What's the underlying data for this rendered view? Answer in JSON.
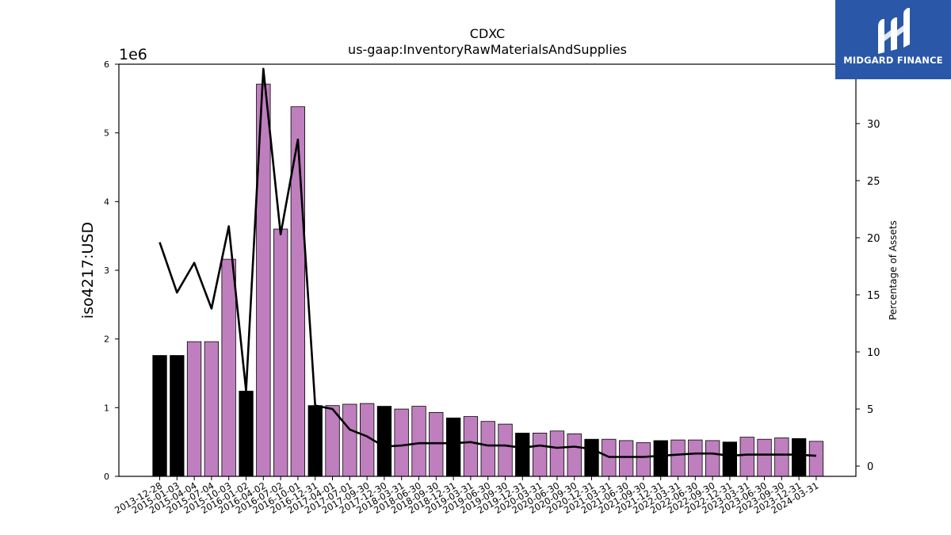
{
  "chart_data": {
    "type": "bar",
    "title": "CDXC",
    "subtitle": "us-gaap:InventoryRawMaterialsAndSupplies",
    "ylabel": "iso4217:USD",
    "y2label": "Percentage of Assets",
    "y_scale_label": "1e6",
    "ylim": [
      0,
      6000000
    ],
    "y2lim": [
      -0.9,
      35.2
    ],
    "y_ticks": [
      "0",
      "1",
      "2",
      "3",
      "4",
      "5",
      "6"
    ],
    "y2_ticks": [
      "0",
      "5",
      "10",
      "15",
      "20",
      "25",
      "30"
    ],
    "categories": [
      "2013-12-28",
      "2015-01-03",
      "2015-04-04",
      "2015-07-04",
      "2015-10-03",
      "2016-01-02",
      "2016-04-02",
      "2016-07-02",
      "2016-10-01",
      "2016-12-31",
      "2017-04-01",
      "2017-07-01",
      "2017-09-30",
      "2017-12-30",
      "2018-03-31",
      "2018-06-30",
      "2018-09-30",
      "2018-12-31",
      "2019-03-31",
      "2019-06-30",
      "2019-09-30",
      "2019-12-31",
      "2020-03-31",
      "2020-06-30",
      "2020-09-30",
      "2020-12-31",
      "2021-03-31",
      "2021-06-30",
      "2021-09-30",
      "2021-12-31",
      "2022-03-31",
      "2022-06-30",
      "2022-09-30",
      "2022-12-31",
      "2023-03-31",
      "2023-06-30",
      "2023-09-30",
      "2023-12-31",
      "2024-03-31"
    ],
    "series": [
      {
        "type": "bar",
        "values": [
          1760000,
          1760000,
          1960000,
          1960000,
          3160000,
          1240000,
          5710000,
          3600000,
          5380000,
          1030000,
          1030000,
          1050000,
          1060000,
          1020000,
          980000,
          1020000,
          930000,
          850000,
          870000,
          800000,
          760000,
          630000,
          630000,
          660000,
          620000,
          540000,
          540000,
          520000,
          490000,
          520000,
          530000,
          530000,
          520000,
          500000,
          570000,
          540000,
          560000,
          550000,
          510000
        ],
        "annual": [
          true,
          true,
          false,
          false,
          false,
          true,
          false,
          false,
          false,
          true,
          false,
          false,
          false,
          true,
          false,
          false,
          false,
          true,
          false,
          false,
          false,
          true,
          false,
          false,
          false,
          true,
          false,
          false,
          false,
          true,
          false,
          false,
          false,
          true,
          false,
          false,
          false,
          true,
          false
        ]
      },
      {
        "type": "line",
        "axis": "right",
        "values": [
          19.6,
          15.2,
          17.8,
          13.8,
          21.0,
          6.6,
          34.8,
          20.3,
          28.6,
          5.3,
          5.0,
          3.2,
          2.6,
          1.7,
          1.8,
          2.0,
          2.0,
          2.0,
          2.1,
          1.8,
          1.8,
          1.6,
          1.8,
          1.6,
          1.7,
          1.5,
          0.8,
          0.8,
          0.8,
          0.9,
          1.0,
          1.1,
          1.1,
          0.9,
          1.0,
          1.0,
          1.0,
          1.0,
          0.9
        ]
      }
    ],
    "colors": {
      "bar_annual": "#000000",
      "bar_quarterly": "#bf7fbf",
      "line": "#000000"
    },
    "legend": "none",
    "grid": false
  },
  "logo": {
    "text": "MIDGARD FINANCE",
    "background": "#2a57a8"
  }
}
